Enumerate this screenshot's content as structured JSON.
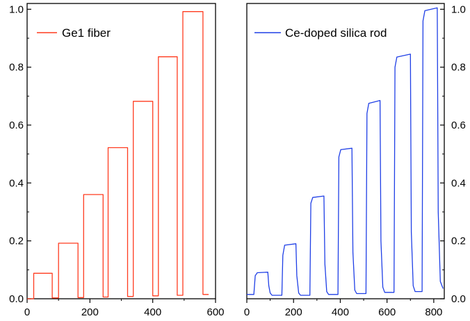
{
  "chart_data": [
    {
      "type": "line",
      "x_label": "",
      "y_label": "",
      "xlim": [
        0,
        600
      ],
      "ylim": [
        0,
        1.02
      ],
      "x_ticks": [
        0,
        200,
        400,
        600
      ],
      "x_tick_labels": [
        "0",
        "200",
        "400",
        "600"
      ],
      "y_ticks": [
        0,
        0.2,
        0.4,
        0.6,
        0.8,
        1.0
      ],
      "y_tick_labels": [
        "0.0",
        "0.2",
        "0.4",
        "0.6",
        "0.8",
        "1.0"
      ],
      "y_axis_side": "left",
      "grid": false,
      "legend_position": "top-left",
      "series": [
        {
          "name": "Ge1 fiber",
          "color": "#ff3b1f",
          "x": [
            0,
            21,
            21,
            80,
            80,
            100,
            100,
            162,
            162,
            180,
            180,
            242,
            242,
            258,
            258,
            320,
            320,
            338,
            338,
            400,
            400,
            418,
            418,
            478,
            478,
            496,
            496,
            560,
            560,
            578
          ],
          "y": [
            0.0,
            0.0,
            0.088,
            0.088,
            0.003,
            0.003,
            0.192,
            0.192,
            0.004,
            0.004,
            0.36,
            0.36,
            0.006,
            0.006,
            0.522,
            0.522,
            0.008,
            0.008,
            0.682,
            0.682,
            0.01,
            0.01,
            0.836,
            0.836,
            0.012,
            0.012,
            0.992,
            0.992,
            0.015,
            0.015
          ]
        }
      ]
    },
    {
      "type": "line",
      "x_label": "",
      "y_label": "",
      "xlim": [
        0,
        845
      ],
      "ylim": [
        0,
        1.02
      ],
      "x_ticks": [
        0,
        200,
        400,
        600,
        800
      ],
      "x_tick_labels": [
        "0",
        "200",
        "400",
        "600",
        "800"
      ],
      "y_ticks": [
        0,
        0.2,
        0.4,
        0.6,
        0.8,
        1.0
      ],
      "y_tick_labels": [
        "0.0",
        "0.2",
        "0.4",
        "0.6",
        "0.8",
        "1.0"
      ],
      "y_axis_side": "right",
      "grid": false,
      "legend_position": "top-left",
      "series": [
        {
          "name": "Ce-doped silica rod",
          "color": "#1f3fe6",
          "x": [
            0,
            30,
            36,
            45,
            90,
            94,
            100,
            108,
            150,
            154,
            162,
            210,
            214,
            222,
            230,
            270,
            274,
            282,
            330,
            334,
            342,
            350,
            390,
            394,
            402,
            450,
            454,
            462,
            470,
            510,
            514,
            522,
            570,
            574,
            582,
            590,
            630,
            634,
            642,
            700,
            704,
            712,
            720,
            750,
            754,
            762,
            815,
            819,
            828,
            840
          ],
          "y": [
            0.015,
            0.015,
            0.08,
            0.09,
            0.092,
            0.045,
            0.02,
            0.012,
            0.012,
            0.15,
            0.185,
            0.19,
            0.08,
            0.02,
            0.012,
            0.012,
            0.33,
            0.35,
            0.355,
            0.12,
            0.025,
            0.015,
            0.015,
            0.49,
            0.515,
            0.52,
            0.16,
            0.03,
            0.018,
            0.018,
            0.64,
            0.675,
            0.685,
            0.2,
            0.04,
            0.022,
            0.022,
            0.8,
            0.835,
            0.845,
            0.23,
            0.045,
            0.025,
            0.025,
            0.96,
            0.995,
            1.005,
            0.3,
            0.06,
            0.035
          ]
        }
      ]
    }
  ]
}
